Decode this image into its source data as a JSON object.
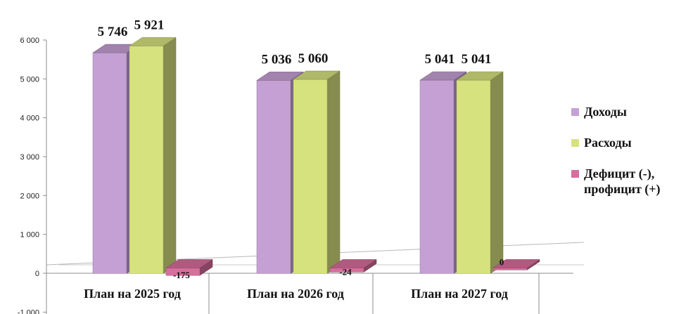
{
  "chart_data": {
    "type": "bar",
    "categories": [
      "План на 2025 год",
      "План на 2026 год",
      "План на 2027 год"
    ],
    "series": [
      {
        "name": "Доходы",
        "values": [
          5746,
          5036,
          5041
        ],
        "labels": [
          "5 746",
          "5 036",
          "5 041"
        ],
        "color": "#C4A0D4"
      },
      {
        "name": "Расходы",
        "values": [
          5921,
          5060,
          5041
        ],
        "labels": [
          "5 921",
          "5 060",
          "5 041"
        ],
        "color": "#D6E27E"
      },
      {
        "name": "Дефицит (-), профицит (+)",
        "values": [
          -175,
          -24,
          0
        ],
        "labels": [
          "-175",
          "-24",
          "0"
        ],
        "color": "#D86E9C"
      }
    ],
    "legend_lines": [
      [
        "Доходы"
      ],
      [
        "Расходы"
      ],
      [
        "Дефицит (-),",
        "профицит (+)"
      ]
    ],
    "yticks": [
      "-1 000",
      "0",
      "1 000",
      "2 000",
      "3 000",
      "4 000",
      "5 000",
      "6 000"
    ],
    "ylim": [
      -1000,
      6000
    ],
    "legend_position": "right",
    "grid": false
  }
}
